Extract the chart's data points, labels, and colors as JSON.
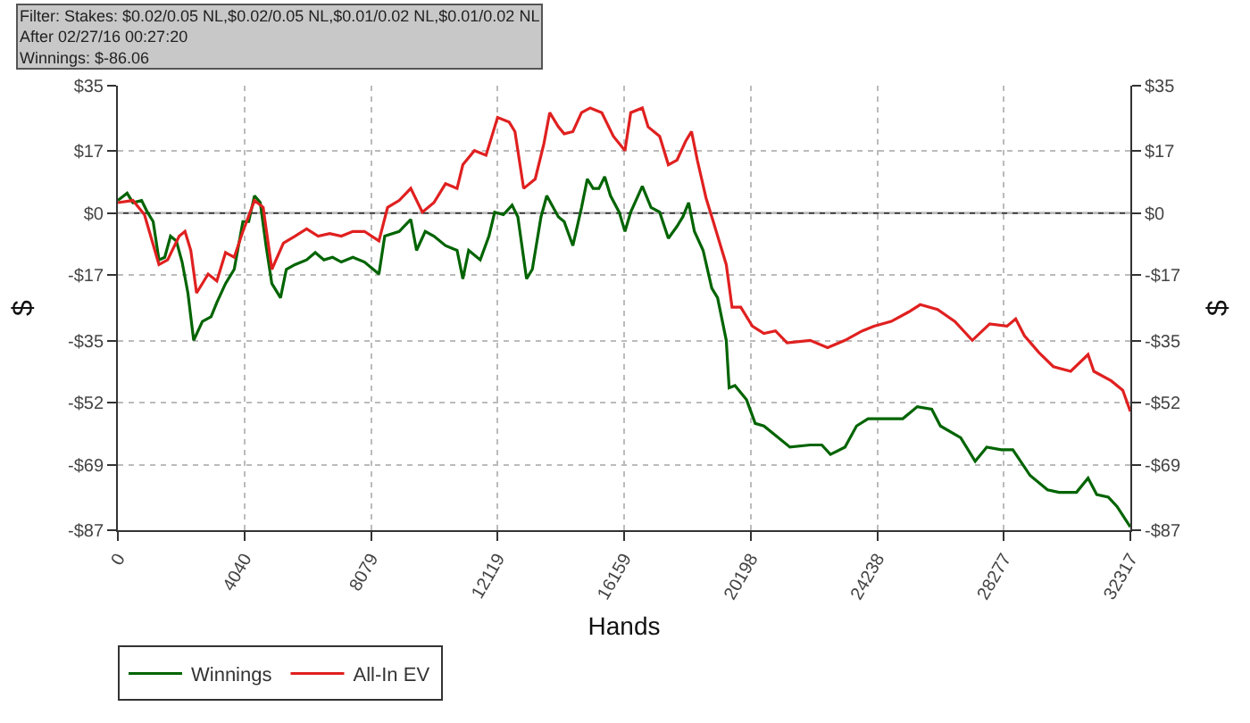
{
  "chart_data": {
    "type": "line",
    "annotations": [
      "Filter: Stakes: $0.02/0.05 NL,$0.02/0.05 NL,$0.01/0.02 NL,$0.01/0.02 NL",
      "After 02/27/16 00:27:20",
      "Winnings: $-86.06"
    ],
    "xlabel": "Hands",
    "ylabel": "$",
    "y2label": "$",
    "xlim": [
      0,
      32317
    ],
    "xticks": [
      0,
      4040,
      8079,
      12119,
      16159,
      20198,
      24238,
      28277,
      32317
    ],
    "ylim": [
      -87,
      35
    ],
    "yticks": [
      {
        "value": 35,
        "label": "$35"
      },
      {
        "value": 17,
        "label": "$17"
      },
      {
        "value": 0,
        "label": "$0"
      },
      {
        "value": -17,
        "label": "-$17"
      },
      {
        "value": -35,
        "label": "-$35"
      },
      {
        "value": -52,
        "label": "-$52"
      },
      {
        "value": -69,
        "label": "-$69"
      },
      {
        "value": -87,
        "label": "-$87"
      }
    ],
    "y2lim": [
      -87,
      35
    ],
    "y2ticks": [
      {
        "value": 35,
        "label": "$35"
      },
      {
        "value": 17,
        "label": "$17"
      },
      {
        "value": 0,
        "label": "$0"
      },
      {
        "value": -17,
        "label": "-$17"
      },
      {
        "value": -35,
        "label": "-$35"
      },
      {
        "value": -52,
        "label": "-$52"
      },
      {
        "value": -69,
        "label": "-$69"
      },
      {
        "value": -87,
        "label": "-$87"
      }
    ],
    "grid": true,
    "legend": "bottom left",
    "line_style": "solid",
    "ref_lines": [
      {
        "axis": "y",
        "value": 0,
        "color": "#333333"
      }
    ],
    "series": [
      {
        "name": "Winnings",
        "color": "#006400",
        "x": [
          0,
          296,
          480,
          758,
          942,
          1127,
          1312,
          1497,
          1681,
          1866,
          2051,
          2236,
          2420,
          2698,
          2975,
          3160,
          3437,
          3714,
          3991,
          4176,
          4361,
          4545,
          4730,
          4915,
          5192,
          5377,
          5654,
          6024,
          6301,
          6578,
          6855,
          7132,
          7501,
          7871,
          8333,
          8518,
          8980,
          9349,
          9534,
          9811,
          10088,
          10458,
          10827,
          11012,
          11197,
          11567,
          11844,
          12028,
          12305,
          12583,
          12767,
          13044,
          13229,
          13506,
          13691,
          14061,
          14245,
          14523,
          14800,
          14984,
          15169,
          15354,
          15539,
          15724,
          16001,
          16186,
          16370,
          16740,
          17017,
          17294,
          17571,
          17848,
          18033,
          18218,
          18403,
          18680,
          18957,
          19142,
          19419,
          19511,
          19696,
          20066,
          20343,
          20620,
          20990,
          21451,
          22098,
          22468,
          22745,
          23207,
          23576,
          23946,
          24315,
          25054,
          25516,
          25978,
          26255,
          26902,
          27364,
          27733,
          28196,
          28565,
          29119,
          29673,
          30043,
          30597,
          30967,
          31244,
          31613,
          31891,
          32317
        ],
        "values": [
          3.5,
          5.5,
          2.9,
          3.5,
          0.3,
          -2.3,
          -12.8,
          -12.1,
          -6.3,
          -7.6,
          -13.4,
          -21.9,
          -34.9,
          -29.7,
          -28.4,
          -24.5,
          -19.3,
          -15.4,
          -2.3,
          -2.3,
          4.8,
          2.9,
          -8.9,
          -19.3,
          -23.2,
          -15.4,
          -14.1,
          -12.8,
          -10.8,
          -12.8,
          -12.1,
          -13.4,
          -12.1,
          -13.4,
          -16.7,
          -6.3,
          -5.0,
          -1.7,
          -10.2,
          -5.0,
          -6.3,
          -8.9,
          -10.2,
          -18.0,
          -10.2,
          -12.8,
          -6.3,
          0.3,
          -0.4,
          2.2,
          -1.0,
          -18.0,
          -15.4,
          -1.0,
          4.8,
          -1.0,
          -2.3,
          -8.9,
          1.6,
          9.4,
          6.8,
          6.8,
          10.0,
          4.8,
          0.3,
          -5.0,
          0.3,
          7.4,
          1.6,
          0.3,
          -6.9,
          -3.6,
          -1.0,
          2.9,
          -5.0,
          -10.2,
          -20.6,
          -23.2,
          -34.9,
          -47.9,
          -47.3,
          -51.2,
          -57.7,
          -58.4,
          -61.0,
          -64.2,
          -63.6,
          -63.6,
          -66.2,
          -64.2,
          -58.4,
          -56.4,
          -56.4,
          -56.4,
          -53.1,
          -53.8,
          -58.4,
          -61.6,
          -68.1,
          -64.2,
          -64.9,
          -64.9,
          -72.0,
          -75.9,
          -76.6,
          -76.6,
          -72.7,
          -77.2,
          -77.9,
          -80.5,
          -86.1
        ]
      },
      {
        "name": "All-In EV",
        "color": "#e02020",
        "x": [
          0,
          480,
          850,
          1312,
          1589,
          1958,
          2143,
          2328,
          2513,
          2882,
          3160,
          3437,
          3714,
          3991,
          4361,
          4638,
          4915,
          5284,
          5654,
          6024,
          6393,
          6762,
          7132,
          7501,
          7871,
          8333,
          8610,
          8980,
          9349,
          9719,
          10088,
          10458,
          10827,
          11012,
          11382,
          11751,
          12121,
          12490,
          12675,
          12952,
          13322,
          13599,
          13784,
          14061,
          14245,
          14523,
          14800,
          15077,
          15447,
          15816,
          16186,
          16370,
          16740,
          16925,
          17294,
          17571,
          17848,
          18126,
          18310,
          18495,
          18773,
          19050,
          19419,
          19604,
          19881,
          20251,
          20620,
          20990,
          21359,
          22098,
          22653,
          23207,
          23761,
          24131,
          24685,
          25239,
          25609,
          26163,
          26717,
          27272,
          27826,
          28380,
          28657,
          28934,
          29396,
          29858,
          30412,
          30967,
          31152,
          31706,
          32075,
          32317
        ],
        "values": [
          2.9,
          3.5,
          -0.4,
          -14.1,
          -12.8,
          -6.3,
          -5.0,
          -10.2,
          -21.9,
          -16.7,
          -18.6,
          -10.8,
          -12.1,
          -5.0,
          3.5,
          1.6,
          -15.4,
          -8.2,
          -6.3,
          -4.3,
          -6.3,
          -5.6,
          -6.3,
          -5.0,
          -5.0,
          -7.6,
          1.6,
          3.5,
          6.8,
          0.3,
          2.9,
          8.1,
          6.8,
          13.3,
          17.2,
          15.9,
          26.3,
          25.0,
          22.4,
          6.8,
          9.4,
          19.1,
          27.6,
          23.7,
          21.8,
          22.4,
          27.6,
          28.9,
          27.6,
          21.1,
          17.2,
          27.6,
          28.9,
          23.7,
          21.1,
          13.3,
          14.6,
          19.8,
          22.4,
          14.6,
          4.2,
          -3.6,
          -14.1,
          -25.8,
          -25.8,
          -31.0,
          -33.0,
          -32.3,
          -35.6,
          -34.9,
          -36.9,
          -34.9,
          -32.3,
          -31.0,
          -29.7,
          -27.1,
          -25.1,
          -26.4,
          -29.7,
          -34.9,
          -30.4,
          -31.0,
          -29.0,
          -33.6,
          -38.2,
          -42.1,
          -43.4,
          -38.8,
          -43.4,
          -46.0,
          -48.6,
          -54.4
        ]
      }
    ]
  }
}
